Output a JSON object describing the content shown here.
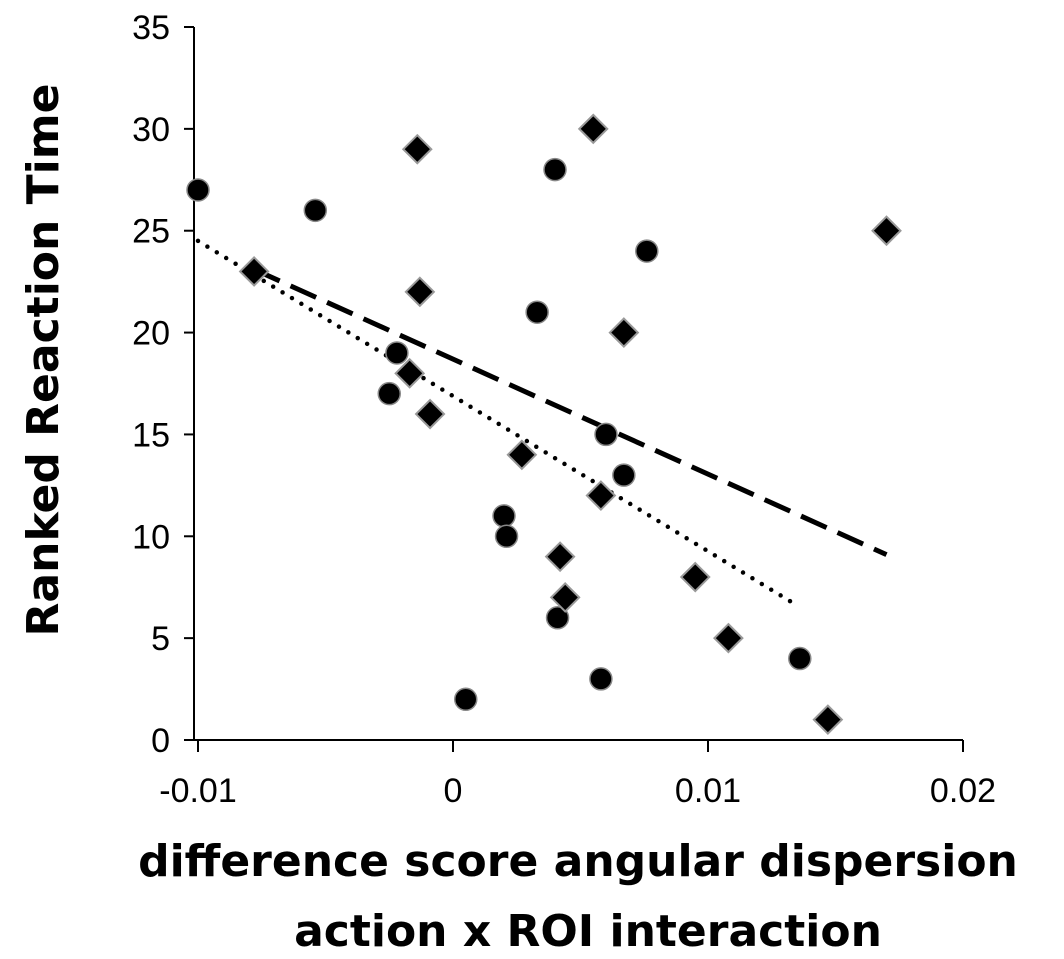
{
  "chart_data": {
    "type": "scatter",
    "title": "",
    "xlabel_lines": [
      "difference score angular dispersion",
      "action x ROI interaction"
    ],
    "ylabel": "Ranked Reaction Time",
    "xlim": [
      -0.01,
      0.02
    ],
    "ylim": [
      0,
      35
    ],
    "xticks": [
      -0.01,
      0,
      0.01,
      0.02
    ],
    "xtick_labels": [
      "-0.01",
      "0",
      "0.01",
      "0.02"
    ],
    "yticks": [
      0,
      5,
      10,
      15,
      20,
      25,
      30,
      35
    ],
    "ytick_labels": [
      "0",
      "5",
      "10",
      "15",
      "20",
      "25",
      "30",
      "35"
    ],
    "grid": false,
    "legend": "none",
    "series": [
      {
        "marker": "circle",
        "color": "#000000",
        "points": [
          {
            "x": -0.01,
            "y": 27
          },
          {
            "x": -0.0054,
            "y": 26
          },
          {
            "x": 0.004,
            "y": 28
          },
          {
            "x": 0.0076,
            "y": 24
          },
          {
            "x": 0.0033,
            "y": 21
          },
          {
            "x": -0.0022,
            "y": 19
          },
          {
            "x": -0.0025,
            "y": 17
          },
          {
            "x": 0.006,
            "y": 15
          },
          {
            "x": 0.0067,
            "y": 13
          },
          {
            "x": 0.002,
            "y": 11
          },
          {
            "x": 0.0021,
            "y": 10
          },
          {
            "x": 0.0041,
            "y": 6
          },
          {
            "x": 0.0136,
            "y": 4
          },
          {
            "x": 0.0058,
            "y": 3
          },
          {
            "x": 0.0005,
            "y": 2
          }
        ],
        "trendline": {
          "style": "dashed",
          "x": [
            -0.0078,
            0.017
          ],
          "y": [
            23.1,
            9.1
          ]
        }
      },
      {
        "marker": "diamond",
        "color": "#000000",
        "points": [
          {
            "x": 0.0055,
            "y": 30
          },
          {
            "x": -0.0014,
            "y": 29
          },
          {
            "x": 0.017,
            "y": 25
          },
          {
            "x": -0.0078,
            "y": 23
          },
          {
            "x": -0.0013,
            "y": 22
          },
          {
            "x": 0.0067,
            "y": 20
          },
          {
            "x": -0.0017,
            "y": 18
          },
          {
            "x": -0.0009,
            "y": 16
          },
          {
            "x": 0.0027,
            "y": 14
          },
          {
            "x": 0.0058,
            "y": 12
          },
          {
            "x": 0.0042,
            "y": 9
          },
          {
            "x": 0.0095,
            "y": 8
          },
          {
            "x": 0.0044,
            "y": 7
          },
          {
            "x": 0.0108,
            "y": 5
          },
          {
            "x": 0.0147,
            "y": 1
          }
        ],
        "trendline": {
          "style": "dotted",
          "x": [
            -0.01,
            0.0135
          ],
          "y": [
            24.5,
            6.6
          ]
        }
      }
    ]
  }
}
